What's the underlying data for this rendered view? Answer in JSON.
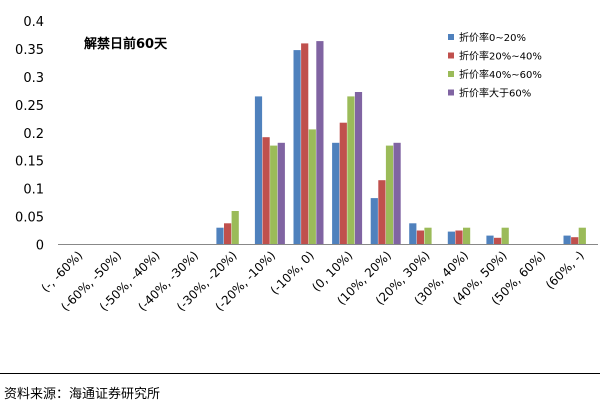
{
  "chart_data": {
    "type": "bar",
    "title": "解禁日前60天",
    "xlabel": "",
    "ylabel": "",
    "ylim": [
      0,
      0.4
    ],
    "yticks": [
      "0",
      "0.05",
      "0.1",
      "0.15",
      "0.2",
      "0.25",
      "0.3",
      "0.35",
      "0.4"
    ],
    "grid": false,
    "legend_position": "top-right",
    "categories": [
      "(-, -60%)",
      "(-60%, -50%)",
      "(-50%, -40%)",
      "(-40%, -30%)",
      "(-30%, -20%)",
      "(-20%, -10%)",
      "(-10%, 0)",
      "(0, 10%)",
      "(10%, 20%)",
      "(20%, 30%)",
      "(30%, 40%)",
      "(40%, 50%)",
      "(50%, 60%)",
      "(60%, -)"
    ],
    "series": [
      {
        "name": "折价率0~20%",
        "color": "#4f81bd",
        "values": [
          0,
          0,
          0,
          0,
          0.03,
          0.265,
          0.348,
          0.182,
          0.083,
          0.038,
          0.023,
          0.016,
          0,
          0.016
        ]
      },
      {
        "name": "折价率20%~40%",
        "color": "#c0504d",
        "values": [
          0,
          0,
          0,
          0,
          0.038,
          0.192,
          0.36,
          0.218,
          0.115,
          0.025,
          0.025,
          0.012,
          0,
          0.013
        ]
      },
      {
        "name": "折价率40%~60%",
        "color": "#9bbb59",
        "values": [
          0,
          0,
          0,
          0,
          0.06,
          0.177,
          0.206,
          0.265,
          0.177,
          0.03,
          0.03,
          0.03,
          0,
          0.03
        ]
      },
      {
        "name": "折价率大于60%",
        "color": "#8064a2",
        "values": [
          0,
          0,
          0,
          0,
          0,
          0.182,
          0.364,
          0.273,
          0.182,
          0,
          0,
          0,
          0,
          0
        ]
      }
    ]
  },
  "source": "资料来源：海通证券研究所"
}
